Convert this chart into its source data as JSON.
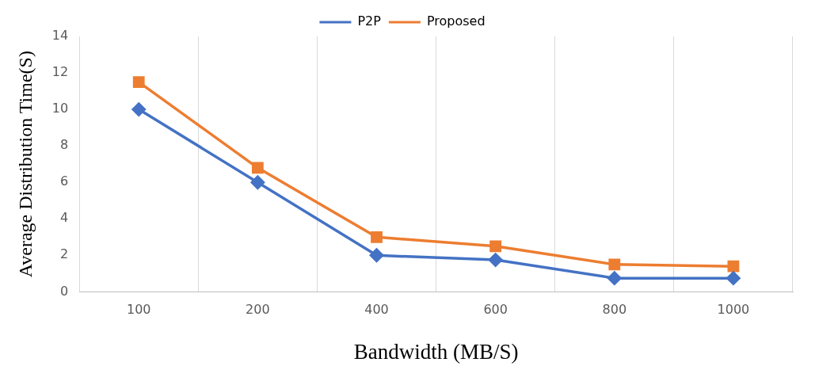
{
  "chart_data": {
    "type": "line",
    "xlabel": "Bandwidth (MB/S)",
    "ylabel": "Average Distribution Time(S)",
    "categories": [
      "100",
      "200",
      "400",
      "600",
      "800",
      "1000"
    ],
    "ylim": [
      0,
      14
    ],
    "yticks": [
      0,
      2,
      4,
      6,
      8,
      10,
      12,
      14
    ],
    "grid": "x",
    "legend": "top",
    "line_style": "solid",
    "series": [
      {
        "name": "P2P",
        "color": "#4472c4",
        "marker": "diamond",
        "values": [
          10,
          6,
          2,
          1.75,
          0.75,
          0.75
        ]
      },
      {
        "name": "Proposed",
        "color": "#ed7d31",
        "marker": "square",
        "values": [
          11.5,
          6.8,
          3,
          2.5,
          1.5,
          1.4
        ]
      }
    ]
  }
}
